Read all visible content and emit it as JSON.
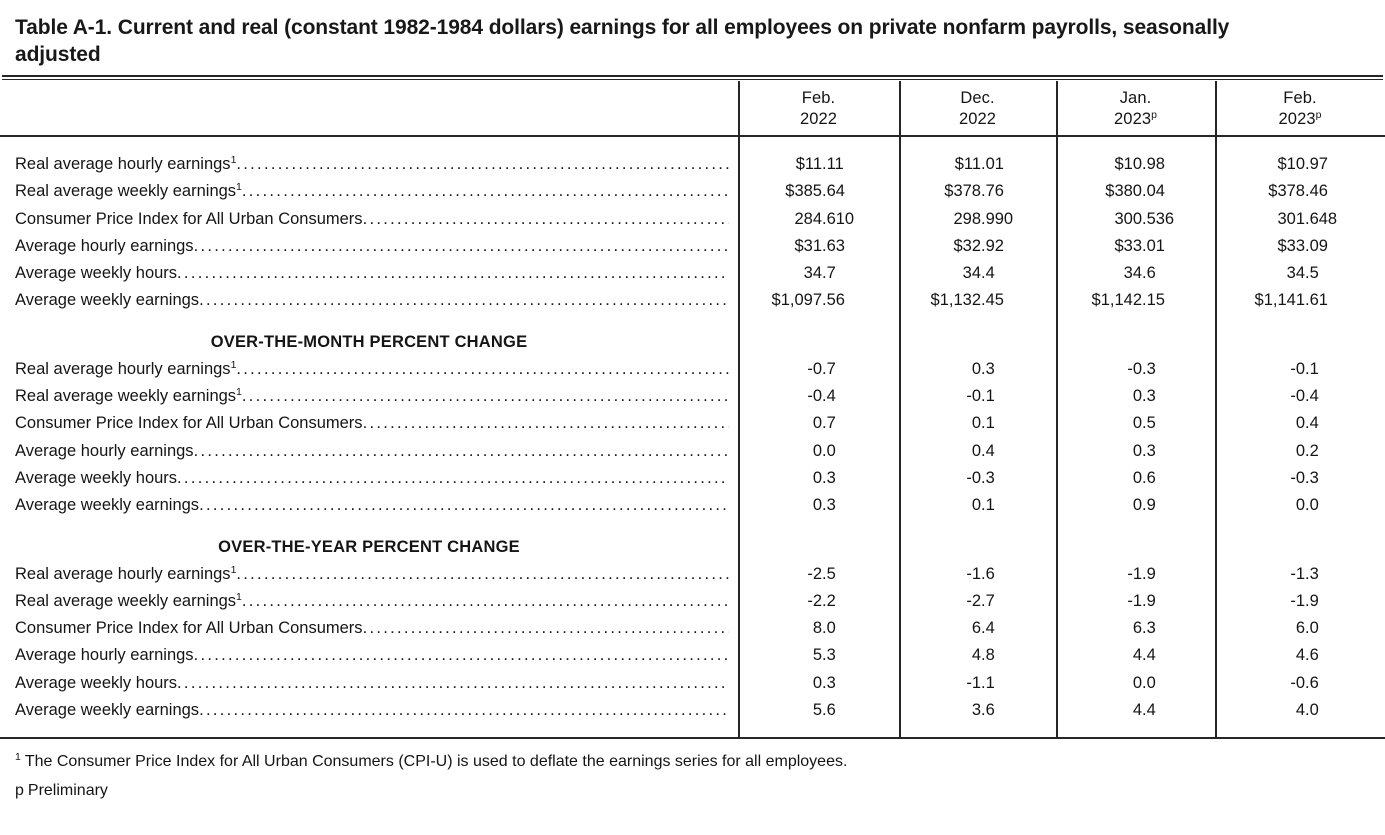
{
  "title": "Table A-1. Current and real (constant 1982-1984 dollars) earnings for all employees on private nonfarm payrolls, seasonally adjusted",
  "columns": [
    {
      "line1": "Feb.",
      "line2": "2022",
      "sup": ""
    },
    {
      "line1": "Dec.",
      "line2": "2022",
      "sup": ""
    },
    {
      "line1": "Jan.",
      "line2": "2023",
      "sup": "p"
    },
    {
      "line1": "Feb.",
      "line2": "2023",
      "sup": "p"
    }
  ],
  "sections": [
    {
      "header": null,
      "rows": [
        {
          "label": "Real average hourly earnings",
          "sup": "1",
          "values": [
            "$11.11",
            "$11.01",
            "$10.98",
            "$10.97"
          ]
        },
        {
          "label": "Real average weekly earnings",
          "sup": "1",
          "values": [
            "$385.64",
            "$378.76",
            "$380.04",
            "$378.46"
          ]
        },
        {
          "label": "Consumer Price Index for All Urban Consumers",
          "sup": "",
          "values": [
            "284.610",
            "298.990",
            "300.536",
            "301.648"
          ]
        },
        {
          "label": "Average hourly earnings",
          "sup": "",
          "values": [
            "$31.63",
            "$32.92",
            "$33.01",
            "$33.09"
          ]
        },
        {
          "label": "Average weekly hours",
          "sup": "",
          "values": [
            "34.7",
            "34.4",
            "34.6",
            "34.5"
          ]
        },
        {
          "label": "Average weekly earnings",
          "sup": "",
          "values": [
            "$1,097.56",
            "$1,132.45",
            "$1,142.15",
            "$1,141.61"
          ]
        }
      ]
    },
    {
      "header": "OVER-THE-MONTH PERCENT CHANGE",
      "rows": [
        {
          "label": "Real average hourly earnings",
          "sup": "1",
          "values": [
            "-0.7",
            "0.3",
            "-0.3",
            "-0.1"
          ]
        },
        {
          "label": "Real average weekly earnings",
          "sup": "1",
          "values": [
            "-0.4",
            "-0.1",
            "0.3",
            "-0.4"
          ]
        },
        {
          "label": "Consumer Price Index for All Urban Consumers",
          "sup": "",
          "values": [
            "0.7",
            "0.1",
            "0.5",
            "0.4"
          ]
        },
        {
          "label": "Average hourly earnings",
          "sup": "",
          "values": [
            "0.0",
            "0.4",
            "0.3",
            "0.2"
          ]
        },
        {
          "label": "Average weekly hours",
          "sup": "",
          "values": [
            "0.3",
            "-0.3",
            "0.6",
            "-0.3"
          ]
        },
        {
          "label": "Average weekly earnings",
          "sup": "",
          "values": [
            "0.3",
            "0.1",
            "0.9",
            "0.0"
          ]
        }
      ]
    },
    {
      "header": "OVER-THE-YEAR PERCENT CHANGE",
      "rows": [
        {
          "label": "Real average hourly earnings",
          "sup": "1",
          "values": [
            "-2.5",
            "-1.6",
            "-1.9",
            "-1.3"
          ]
        },
        {
          "label": "Real average weekly earnings",
          "sup": "1",
          "values": [
            "-2.2",
            "-2.7",
            "-1.9",
            "-1.9"
          ]
        },
        {
          "label": "Consumer Price Index for All Urban Consumers",
          "sup": "",
          "values": [
            "8.0",
            "6.4",
            "6.3",
            "6.0"
          ]
        },
        {
          "label": "Average hourly earnings",
          "sup": "",
          "values": [
            "5.3",
            "4.8",
            "4.4",
            "4.6"
          ]
        },
        {
          "label": "Average weekly hours",
          "sup": "",
          "values": [
            "0.3",
            "-1.1",
            "0.0",
            "-0.6"
          ]
        },
        {
          "label": "Average weekly earnings",
          "sup": "",
          "values": [
            "5.6",
            "3.6",
            "4.4",
            "4.0"
          ]
        }
      ]
    }
  ],
  "footnotes": [
    {
      "marker": "1",
      "superscript": true,
      "text": "The Consumer Price Index for All Urban Consumers (CPI-U) is used to deflate the earnings series for all employees."
    },
    {
      "marker": "p",
      "superscript": false,
      "text": "Preliminary"
    }
  ],
  "colors": {
    "text": "#151515",
    "rule": "#262626",
    "background": "#ffffff"
  }
}
